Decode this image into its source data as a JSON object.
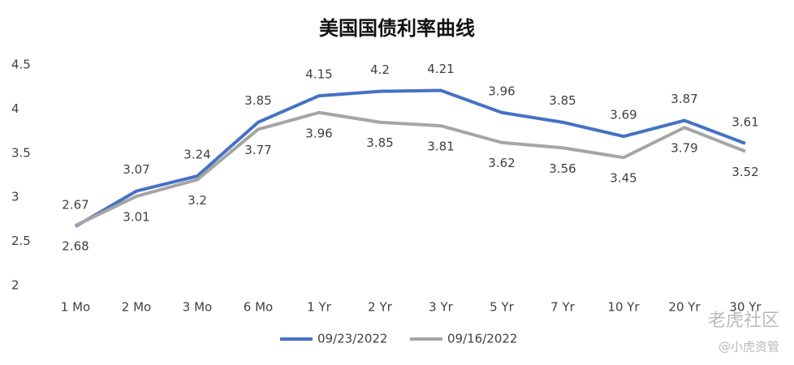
{
  "chart_data": {
    "type": "line",
    "title": "美国国债利率曲线",
    "categories": [
      "1 Mo",
      "2 Mo",
      "3 Mo",
      "6 Mo",
      "1 Yr",
      "2 Yr",
      "3 Yr",
      "5 Yr",
      "7 Yr",
      "10 Yr",
      "20 Yr",
      "30 Yr"
    ],
    "series": [
      {
        "name": "09/23/2022",
        "color": "#4472c4",
        "values": [
          2.67,
          3.07,
          3.24,
          3.85,
          4.15,
          4.2,
          4.21,
          3.96,
          3.85,
          3.69,
          3.87,
          3.61
        ]
      },
      {
        "name": "09/16/2022",
        "color": "#a5a5a5",
        "values": [
          2.68,
          3.01,
          3.2,
          3.77,
          3.96,
          3.85,
          3.81,
          3.62,
          3.56,
          3.45,
          3.79,
          3.52
        ]
      }
    ],
    "ylim": [
      2,
      4.5
    ],
    "yticks": [
      2,
      2.5,
      3,
      3.5,
      4,
      4.5
    ],
    "grid": false,
    "legend": "bottom",
    "watermark": [
      "老虎社区",
      "@小虎资管"
    ]
  }
}
